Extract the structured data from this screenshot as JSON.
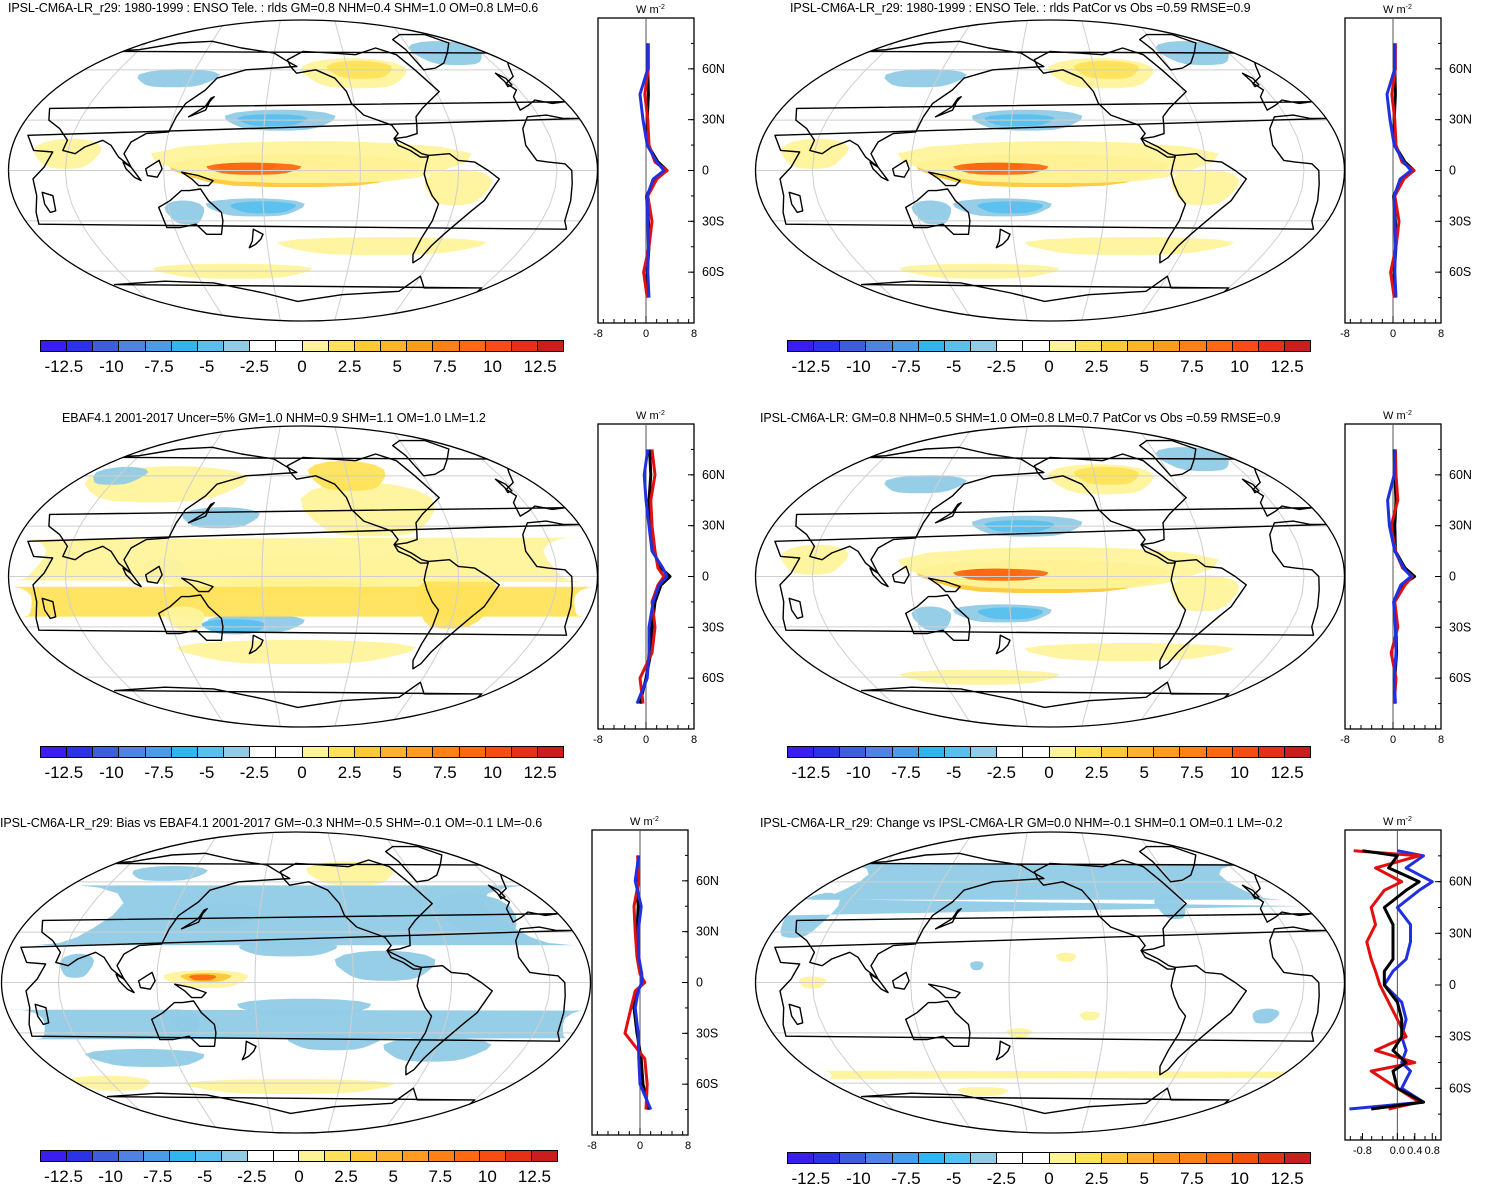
{
  "colorbar": {
    "labels": [
      "-12.5",
      "-10",
      "-7.5",
      "-5",
      "-2.5",
      "0",
      "2.5",
      "5",
      "7.5",
      "10",
      "12.5"
    ],
    "colors": [
      "#3a1ef0",
      "#2c32e6",
      "#3e5ddc",
      "#4f82e2",
      "#4a9be8",
      "#2fb6ee",
      "#58c0ee",
      "#91cbe6",
      "#ffffff",
      "#ffffff",
      "#fff39a",
      "#ffe15a",
      "#ffc837",
      "#ffb32c",
      "#ff9b1e",
      "#ff8015",
      "#ff6a10",
      "#f54d12",
      "#e43015",
      "#c81e1e"
    ]
  },
  "units_label": "W m",
  "units_exp": "-2",
  "lat_labels": [
    "60N",
    "30N",
    "0",
    "30S",
    "60S"
  ],
  "panels": [
    {
      "title": "IPSL-CM6A-LR_r29: 1980-1999 : ENSO Tele. : rlds GM=0.8 NHM=0.4 SHM=1.0 OM=0.8 LM=0.6",
      "xticks": [
        "-8",
        "0",
        "8"
      ],
      "xrange": [
        -8,
        8
      ],
      "pattern": "model",
      "chart_data": {
        "type": "line",
        "x_label": "W m-2",
        "series": [
          {
            "name": "black",
            "color": "#000000",
            "lat": [
              -75,
              -60,
              -45,
              -30,
              -15,
              -5,
              0,
              5,
              15,
              30,
              45,
              60,
              75
            ],
            "x": [
              0.3,
              0.2,
              0.5,
              0.4,
              0.1,
              1.5,
              3.5,
              2.0,
              0.3,
              0.2,
              0.4,
              0.3,
              0.3
            ]
          },
          {
            "name": "red",
            "color": "#e01010",
            "lat": [
              -75,
              -60,
              -45,
              -30,
              -15,
              -5,
              0,
              5,
              15,
              30,
              45,
              60,
              75
            ],
            "x": [
              0.2,
              -0.4,
              0.5,
              1.0,
              0.3,
              1.8,
              3.5,
              1.5,
              0.5,
              0.3,
              -0.2,
              0.4,
              0.4
            ]
          },
          {
            "name": "blue",
            "color": "#2030e0",
            "lat": [
              -75,
              -60,
              -45,
              -30,
              -15,
              -5,
              0,
              5,
              15,
              30,
              45,
              60,
              75
            ],
            "x": [
              0.5,
              0.3,
              0.4,
              0.3,
              0.2,
              1.2,
              3.0,
              1.8,
              0.2,
              -0.5,
              -1.0,
              0.3,
              0.3
            ]
          }
        ]
      }
    },
    {
      "title": "IPSL-CM6A-LR_r29: 1980-1999 : ENSO Tele. : rlds PatCor vs Obs =0.59 RMSE=0.9",
      "xticks": [
        "-8",
        "0",
        "8"
      ],
      "xrange": [
        -8,
        8
      ],
      "pattern": "model",
      "chart_data": {
        "type": "line",
        "x_label": "W m-2",
        "series": [
          {
            "name": "black",
            "color": "#000000",
            "lat": [
              -75,
              -60,
              -45,
              -30,
              -15,
              -5,
              0,
              5,
              15,
              30,
              45,
              60,
              75
            ],
            "x": [
              0.3,
              0.2,
              0.5,
              0.4,
              0.1,
              1.5,
              3.5,
              2.0,
              0.3,
              0.2,
              0.4,
              0.3,
              0.3
            ]
          },
          {
            "name": "red",
            "color": "#e01010",
            "lat": [
              -75,
              -60,
              -45,
              -30,
              -15,
              -5,
              0,
              5,
              15,
              30,
              45,
              60,
              75
            ],
            "x": [
              0.2,
              -0.4,
              0.5,
              1.0,
              0.3,
              1.8,
              3.5,
              1.5,
              0.5,
              0.3,
              -0.2,
              0.4,
              0.4
            ]
          },
          {
            "name": "blue",
            "color": "#2030e0",
            "lat": [
              -75,
              -60,
              -45,
              -30,
              -15,
              -5,
              0,
              5,
              15,
              30,
              45,
              60,
              75
            ],
            "x": [
              0.5,
              0.3,
              0.4,
              0.3,
              0.2,
              1.2,
              3.0,
              1.8,
              0.2,
              -0.5,
              -1.0,
              0.3,
              0.3
            ]
          }
        ]
      }
    },
    {
      "title": "EBAF4.1 2001-2017 Uncer=5% GM=1.0 NHM=0.9 SHM=1.1 OM=1.0 LM=1.2",
      "xticks": [
        "-8",
        "0",
        "8"
      ],
      "xrange": [
        -8,
        8
      ],
      "pattern": "obs",
      "chart_data": {
        "type": "line",
        "x_label": "W m-2",
        "series": [
          {
            "name": "black",
            "color": "#000000",
            "lat": [
              -75,
              -60,
              -45,
              -30,
              -15,
              -5,
              0,
              5,
              15,
              30,
              45,
              60,
              75
            ],
            "x": [
              -1.0,
              0.0,
              0.8,
              1.0,
              1.5,
              2.5,
              4.0,
              2.5,
              1.2,
              0.8,
              0.5,
              0.8,
              0.6
            ]
          },
          {
            "name": "red",
            "color": "#e01010",
            "lat": [
              -75,
              -60,
              -45,
              -30,
              -15,
              -5,
              0,
              5,
              15,
              30,
              45,
              60,
              75
            ],
            "x": [
              -0.5,
              -1.0,
              1.0,
              1.5,
              1.0,
              2.0,
              3.0,
              2.0,
              1.5,
              1.0,
              0.8,
              1.5,
              1.0
            ]
          },
          {
            "name": "blue",
            "color": "#2030e0",
            "lat": [
              -75,
              -60,
              -45,
              -30,
              -15,
              -5,
              0,
              5,
              15,
              30,
              45,
              60,
              75
            ],
            "x": [
              -1.5,
              0.2,
              0.5,
              0.5,
              1.2,
              2.2,
              3.5,
              2.8,
              1.0,
              0.5,
              0.0,
              -0.3,
              0.3
            ]
          }
        ]
      }
    },
    {
      "title": "IPSL-CM6A-LR: GM=0.8 NHM=0.5 SHM=1.0 OM=0.8 LM=0.7 PatCor vs Obs =0.59 RMSE=0.9",
      "xticks": [
        "-8",
        "0",
        "8"
      ],
      "xrange": [
        -8,
        8
      ],
      "pattern": "model",
      "chart_data": {
        "type": "line",
        "x_label": "W m-2",
        "series": [
          {
            "name": "black",
            "color": "#000000",
            "lat": [
              -75,
              -60,
              -45,
              -30,
              -15,
              -5,
              0,
              5,
              15,
              30,
              45,
              60,
              75
            ],
            "x": [
              0.3,
              0.3,
              0.6,
              0.5,
              0.2,
              1.5,
              3.6,
              2.0,
              0.4,
              0.3,
              0.5,
              0.3,
              0.2
            ]
          },
          {
            "name": "red",
            "color": "#e01010",
            "lat": [
              -75,
              -60,
              -45,
              -30,
              -15,
              -5,
              0,
              5,
              15,
              30,
              45,
              60,
              75
            ],
            "x": [
              0.2,
              0.5,
              -0.3,
              0.8,
              0.3,
              2.0,
              3.2,
              1.6,
              0.4,
              -0.3,
              0.8,
              0.5,
              0.4
            ]
          },
          {
            "name": "blue",
            "color": "#2030e0",
            "lat": [
              -75,
              -60,
              -45,
              -30,
              -15,
              -5,
              0,
              5,
              15,
              30,
              45,
              60,
              75
            ],
            "x": [
              0.4,
              0.2,
              0.5,
              0.4,
              0.1,
              1.3,
              3.0,
              1.8,
              0.3,
              -0.6,
              -0.9,
              0.2,
              0.3
            ]
          }
        ]
      }
    },
    {
      "title": "IPSL-CM6A-LR_r29: Bias vs EBAF4.1 2001-2017 GM=-0.3 NHM=-0.5 SHM=-0.1 OM=-0.1 LM=-0.6",
      "xticks": [
        "-8",
        "0",
        "8"
      ],
      "xrange": [
        -8,
        8
      ],
      "pattern": "bias",
      "chart_data": {
        "type": "line",
        "x_label": "W m-2",
        "series": [
          {
            "name": "black",
            "color": "#000000",
            "lat": [
              -75,
              -60,
              -45,
              -30,
              -15,
              -5,
              0,
              5,
              15,
              30,
              45,
              60,
              75
            ],
            "x": [
              1.5,
              0.5,
              0.2,
              -0.5,
              -1.0,
              -0.5,
              0.5,
              0.2,
              -0.3,
              -0.5,
              -0.3,
              -0.5,
              -0.3
            ]
          },
          {
            "name": "red",
            "color": "#e01010",
            "lat": [
              -75,
              -60,
              -45,
              -30,
              -15,
              -5,
              0,
              5,
              15,
              30,
              45,
              60,
              75
            ],
            "x": [
              1.0,
              1.2,
              0.8,
              -2.5,
              -1.5,
              -0.8,
              0.8,
              0.0,
              -0.5,
              -0.8,
              -1.0,
              -0.2,
              -0.4
            ]
          },
          {
            "name": "blue",
            "color": "#2030e0",
            "lat": [
              -75,
              -60,
              -45,
              -30,
              -15,
              -5,
              0,
              5,
              15,
              30,
              45,
              60,
              75
            ],
            "x": [
              1.8,
              0.0,
              -0.2,
              -0.3,
              -0.8,
              -0.3,
              0.3,
              0.3,
              -0.2,
              -0.3,
              0.2,
              -0.8,
              -0.2
            ]
          }
        ]
      }
    },
    {
      "title": "IPSL-CM6A-LR_r29: Change vs IPSL-CM6A-LR GM=0.0 NHM=-0.1 SHM=0.1 OM=0.1 LM=-0.2",
      "xticks": [
        "-0.8",
        "0.0",
        "0.4",
        "0.8"
      ],
      "xrange": [
        -1.2,
        1.0
      ],
      "pattern": "change",
      "chart_data": {
        "type": "line",
        "x_label": "W m-2",
        "series": [
          {
            "name": "blue",
            "color": "#2030e0",
            "lat": [
              -72,
              -68,
              -60,
              -50,
              -45,
              -38,
              -30,
              -20,
              -10,
              0,
              8,
              15,
              25,
              35,
              45,
              55,
              60,
              68,
              75,
              78
            ],
            "x": [
              -1.1,
              0.6,
              0.1,
              0.3,
              0.1,
              0.2,
              0.1,
              0.2,
              0.1,
              -0.3,
              -0.1,
              0.2,
              0.3,
              0.3,
              0.0,
              0.5,
              0.8,
              0.2,
              0.6,
              0.0
            ]
          },
          {
            "name": "red",
            "color": "#e01010",
            "lat": [
              -72,
              -68,
              -60,
              -50,
              -45,
              -38,
              -30,
              -20,
              -10,
              0,
              8,
              15,
              25,
              35,
              45,
              55,
              60,
              68,
              75,
              78
            ],
            "x": [
              -0.2,
              0.5,
              0.0,
              -0.6,
              0.4,
              -0.5,
              0.2,
              0.0,
              -0.2,
              -0.4,
              -0.5,
              -0.6,
              -0.7,
              -0.5,
              -0.6,
              -0.3,
              0.1,
              -0.5,
              0.5,
              -1.0
            ]
          },
          {
            "name": "black",
            "color": "#000000",
            "lat": [
              -72,
              -68,
              -60,
              -50,
              -45,
              -38,
              -30,
              -20,
              -10,
              0,
              8,
              15,
              25,
              35,
              45,
              55,
              60,
              68,
              75,
              78
            ],
            "x": [
              -0.6,
              0.6,
              0.0,
              -0.1,
              0.2,
              -0.1,
              0.1,
              0.1,
              0.0,
              -0.3,
              -0.3,
              -0.1,
              -0.1,
              -0.1,
              -0.3,
              0.2,
              0.5,
              -0.2,
              0.0,
              -0.8
            ]
          }
        ]
      }
    }
  ]
}
